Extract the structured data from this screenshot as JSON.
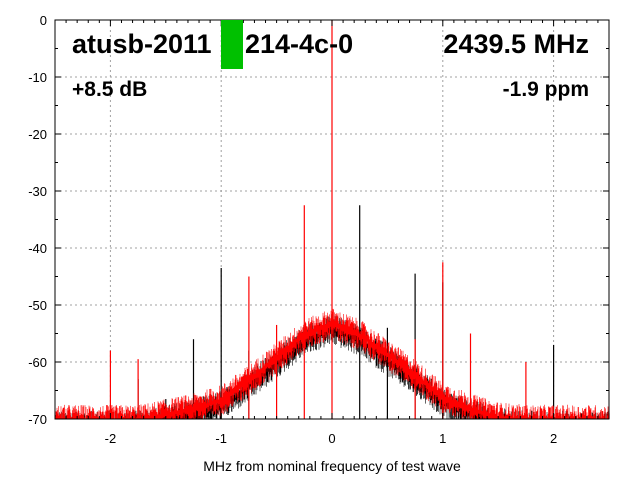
{
  "chart_data": {
    "type": "line",
    "xlabel": "MHz from nominal frequency of test wave",
    "ylabel": "",
    "xlim": [
      -2.5,
      2.5
    ],
    "ylim": [
      -70,
      0
    ],
    "xticks": [
      -2,
      -1,
      0,
      1,
      2
    ],
    "yticks": [
      0,
      -10,
      -20,
      -30,
      -40,
      -50,
      -60,
      -70
    ],
    "grid": true,
    "annotations": {
      "device": "atusb-2011",
      "device_suffix": "214-4c-0",
      "frequency": "2439.5 MHz",
      "gain": "+8.5 dB",
      "offset": "-1.9 ppm"
    },
    "status_marker_color": "#00c000",
    "series": [
      {
        "color": "#ff0000",
        "noise_envelope": {
          "x": [
            -2.5,
            -2.0,
            -1.75,
            -1.5,
            -1.25,
            -1.0,
            -0.75,
            -0.5,
            -0.25,
            0.0,
            0.25,
            0.5,
            0.75,
            1.0,
            1.25,
            1.5,
            1.75,
            2.5
          ],
          "y": [
            -70,
            -70,
            -70,
            -69,
            -68,
            -66.5,
            -63,
            -59,
            -55,
            -53,
            -55,
            -58.5,
            -62,
            -66,
            -68,
            -69.5,
            -70,
            -70
          ]
        },
        "spurs": {
          "x": [
            -2.0,
            -1.75,
            -0.75,
            -0.5,
            -0.25,
            0.0,
            0.75,
            1.0,
            1.25,
            1.75,
            2.5
          ],
          "y": [
            -58,
            -59.5,
            -45,
            -53.5,
            -32.5,
            0,
            -56,
            -42.5,
            -55,
            -60,
            -69
          ]
        }
      },
      {
        "color": "#000000",
        "spurs": {
          "x": [
            -1.75,
            -1.5,
            -1.25,
            -1.0,
            -0.75,
            0.25,
            0.5,
            0.75,
            1.0,
            2.0,
            2.25
          ],
          "y": [
            -63,
            -66.5,
            -56,
            -43.5,
            -58,
            -32.5,
            -54,
            -44.5,
            -46,
            -57,
            -69
          ]
        }
      }
    ]
  }
}
